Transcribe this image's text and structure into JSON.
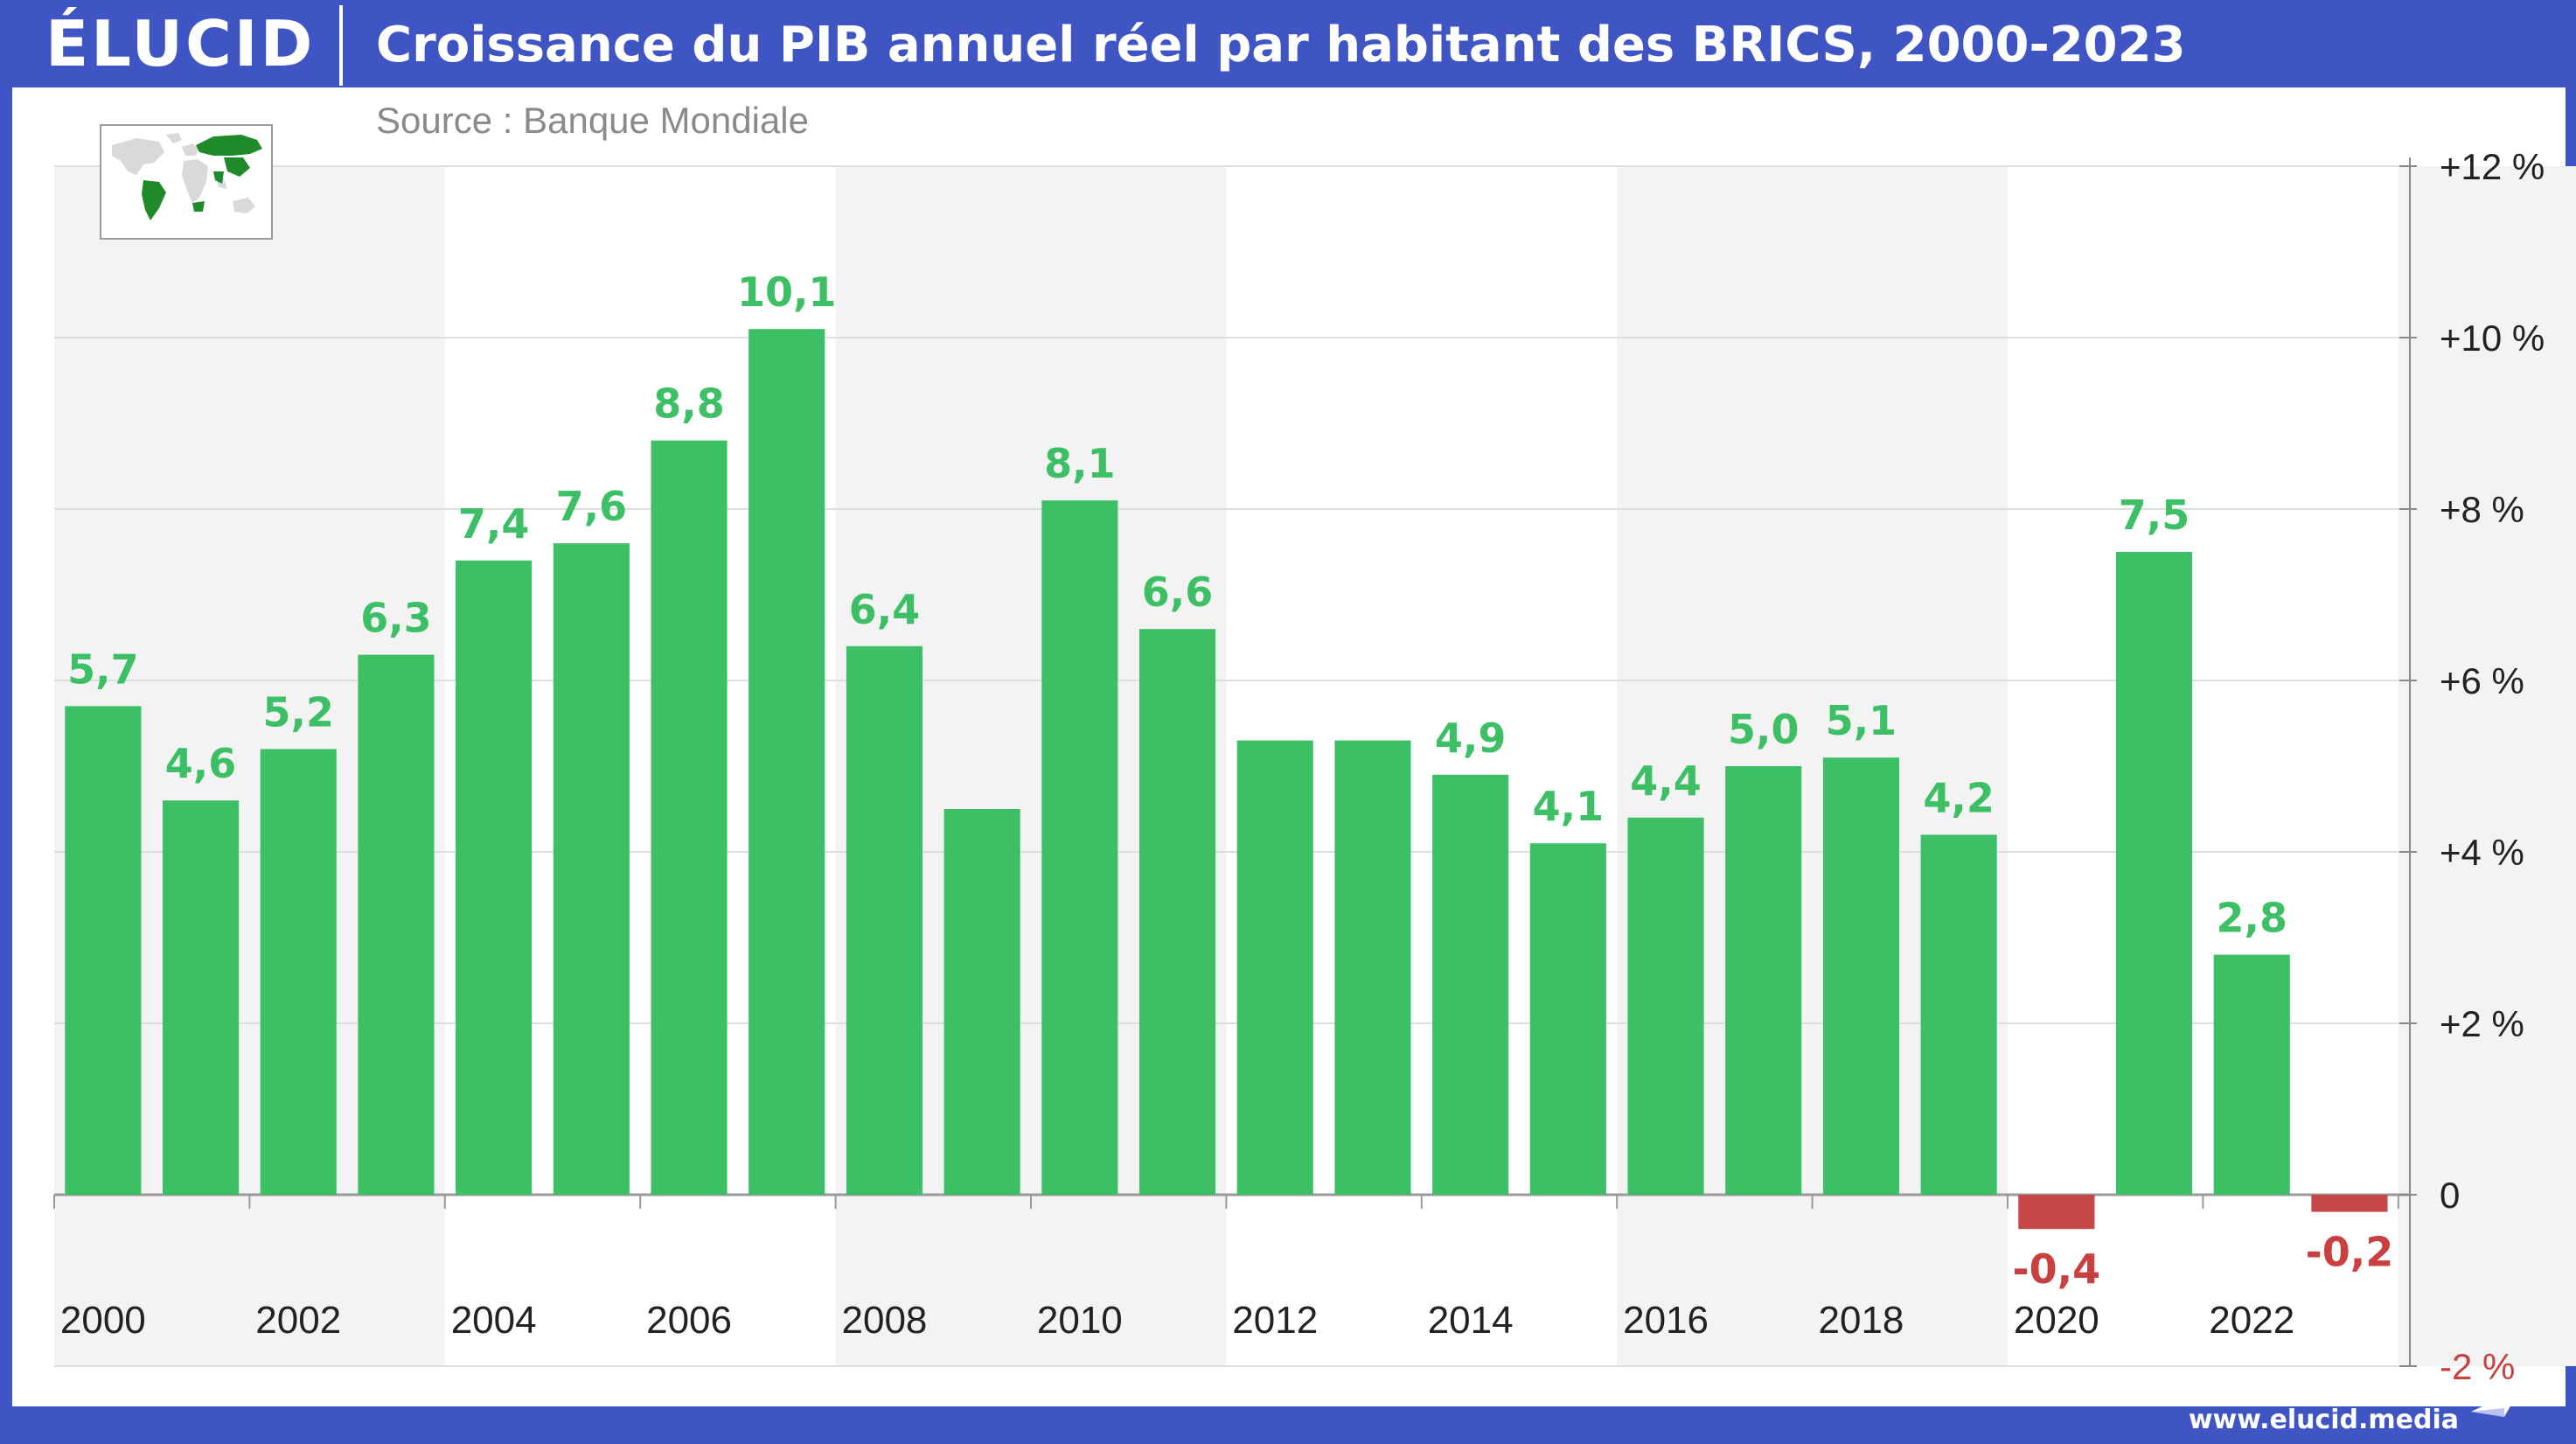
{
  "header": {
    "logo": "ÉLUCID",
    "title": "Croissance du PIB annuel réel par habitant des BRICS, 2000-2023"
  },
  "source": "Source : Banque Mondiale",
  "footer": {
    "url": "www.elucid.media"
  },
  "colors": {
    "positive": "#3dbf66",
    "negative": "#c74848",
    "positive_label": "#3dbf66",
    "negative_label": "#c94040",
    "band": "#f3f3f3",
    "grid": "#dedede",
    "brand": "#3f55c4",
    "map_highlight": "#1f8a2a",
    "map_land": "#d9d9d9"
  },
  "icons": {
    "map": "world-map-brics-icon",
    "footer": "paper-plane-icon"
  },
  "chart_data": {
    "type": "bar",
    "x": [
      2000,
      2001,
      2002,
      2003,
      2004,
      2005,
      2006,
      2007,
      2008,
      2009,
      2010,
      2011,
      2012,
      2013,
      2014,
      2015,
      2016,
      2017,
      2018,
      2019,
      2020,
      2021,
      2022,
      2023
    ],
    "values": [
      5.7,
      4.6,
      5.2,
      6.3,
      7.4,
      7.6,
      8.8,
      10.1,
      6.4,
      4.5,
      8.1,
      6.6,
      5.3,
      5.3,
      4.9,
      4.1,
      4.4,
      5.0,
      5.1,
      4.2,
      -0.4,
      7.5,
      2.8,
      -0.2
    ],
    "data_labels": [
      "5,7",
      "4,6",
      "5,2",
      "6,3",
      "7,4",
      "7,6",
      "8,8",
      "10,1",
      "6,4",
      "",
      "8,1",
      "6,6",
      "",
      "",
      "4,9",
      "4,1",
      "4,4",
      "5,0",
      "5,1",
      "4,2",
      "-0,4",
      "7,5",
      "2,8",
      "-0,2"
    ],
    "x_tick_labels": [
      "2000",
      "2002",
      "2004",
      "2006",
      "2008",
      "2010",
      "2012",
      "2014",
      "2016",
      "2018",
      "2020",
      "2022"
    ],
    "y_ticks": [
      12,
      10,
      8,
      6,
      4,
      2,
      0,
      -2
    ],
    "y_tick_labels": [
      "+12 %",
      "+10 %",
      "+8 %",
      "+6 %",
      "+4 %",
      "+2 %",
      "0",
      "-2 %"
    ],
    "ylim": [
      -2,
      12
    ],
    "grid": true,
    "y_axis_side": "right"
  }
}
